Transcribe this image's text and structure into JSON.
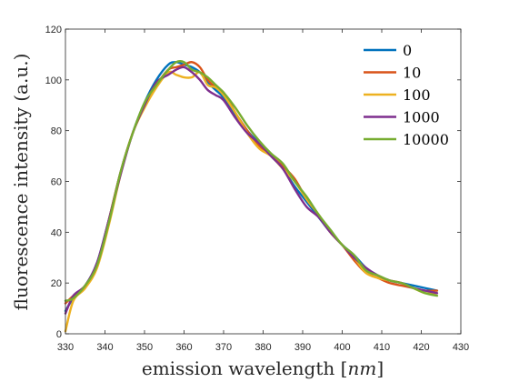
{
  "chart_data": {
    "type": "line",
    "title": "",
    "xlabel_prefix": "emission wavelength ",
    "xlabel_unit": "nm",
    "ylabel": "fluorescence intensity (a.u.)",
    "xlim": [
      330,
      430
    ],
    "ylim": [
      0,
      120
    ],
    "xticks": [
      330,
      340,
      350,
      360,
      370,
      380,
      390,
      400,
      410,
      420,
      430
    ],
    "yticks": [
      0,
      20,
      40,
      60,
      80,
      100,
      120
    ],
    "grid": false,
    "legend_position": "top-right",
    "x": [
      330,
      332,
      335,
      338,
      341,
      344,
      347,
      350,
      353,
      356,
      358,
      360,
      362,
      364,
      366,
      368,
      370,
      373,
      376,
      379,
      382,
      385,
      388,
      391,
      394,
      397,
      400,
      403,
      406,
      409,
      412,
      415,
      418,
      421,
      424
    ],
    "series": [
      {
        "name": "0",
        "color": "#0072BD",
        "values": [
          9,
          14,
          19,
          28,
          45,
          64,
          79,
          91,
          100,
          106,
          107,
          106,
          105,
          103,
          99,
          96,
          93,
          86,
          80,
          75,
          70,
          65,
          58,
          52,
          46,
          40,
          35,
          31,
          26,
          23,
          21,
          20,
          19,
          18,
          17
        ]
      },
      {
        "name": "10",
        "color": "#D95319",
        "values": [
          12,
          15,
          19,
          27,
          45,
          64,
          79,
          90,
          98,
          104,
          105,
          106,
          107,
          105,
          100,
          97,
          95,
          87,
          80,
          74,
          70,
          66,
          61,
          53,
          47,
          40,
          35,
          29,
          24,
          22,
          20,
          19,
          18,
          17,
          17
        ]
      },
      {
        "name": "100",
        "color": "#EDB120",
        "values": [
          1,
          13,
          18,
          26,
          43,
          63,
          79,
          89,
          97,
          103,
          102,
          101,
          101,
          103,
          98,
          97,
          94,
          87,
          79,
          73,
          70,
          65,
          60,
          53,
          47,
          40,
          35,
          30,
          24,
          22,
          21,
          20,
          18,
          16,
          16
        ]
      },
      {
        "name": "1000",
        "color": "#7E2F8E",
        "values": [
          8,
          15,
          19,
          28,
          45,
          63,
          79,
          90,
          99,
          102,
          104,
          105,
          103,
          100,
          96,
          94,
          92,
          85,
          79,
          75,
          70,
          65,
          57,
          50,
          46,
          40,
          35,
          30,
          26,
          23,
          21,
          20,
          18,
          17,
          16
        ]
      },
      {
        "name": "10000",
        "color": "#77AC30",
        "values": [
          13,
          14,
          19,
          27,
          44,
          64,
          79,
          91,
          98,
          104,
          107,
          107,
          104,
          103,
          101,
          98,
          95,
          89,
          82,
          76,
          71,
          67,
          60,
          54,
          47,
          41,
          35,
          31,
          25,
          23,
          21,
          20,
          18,
          16,
          15
        ]
      }
    ]
  }
}
